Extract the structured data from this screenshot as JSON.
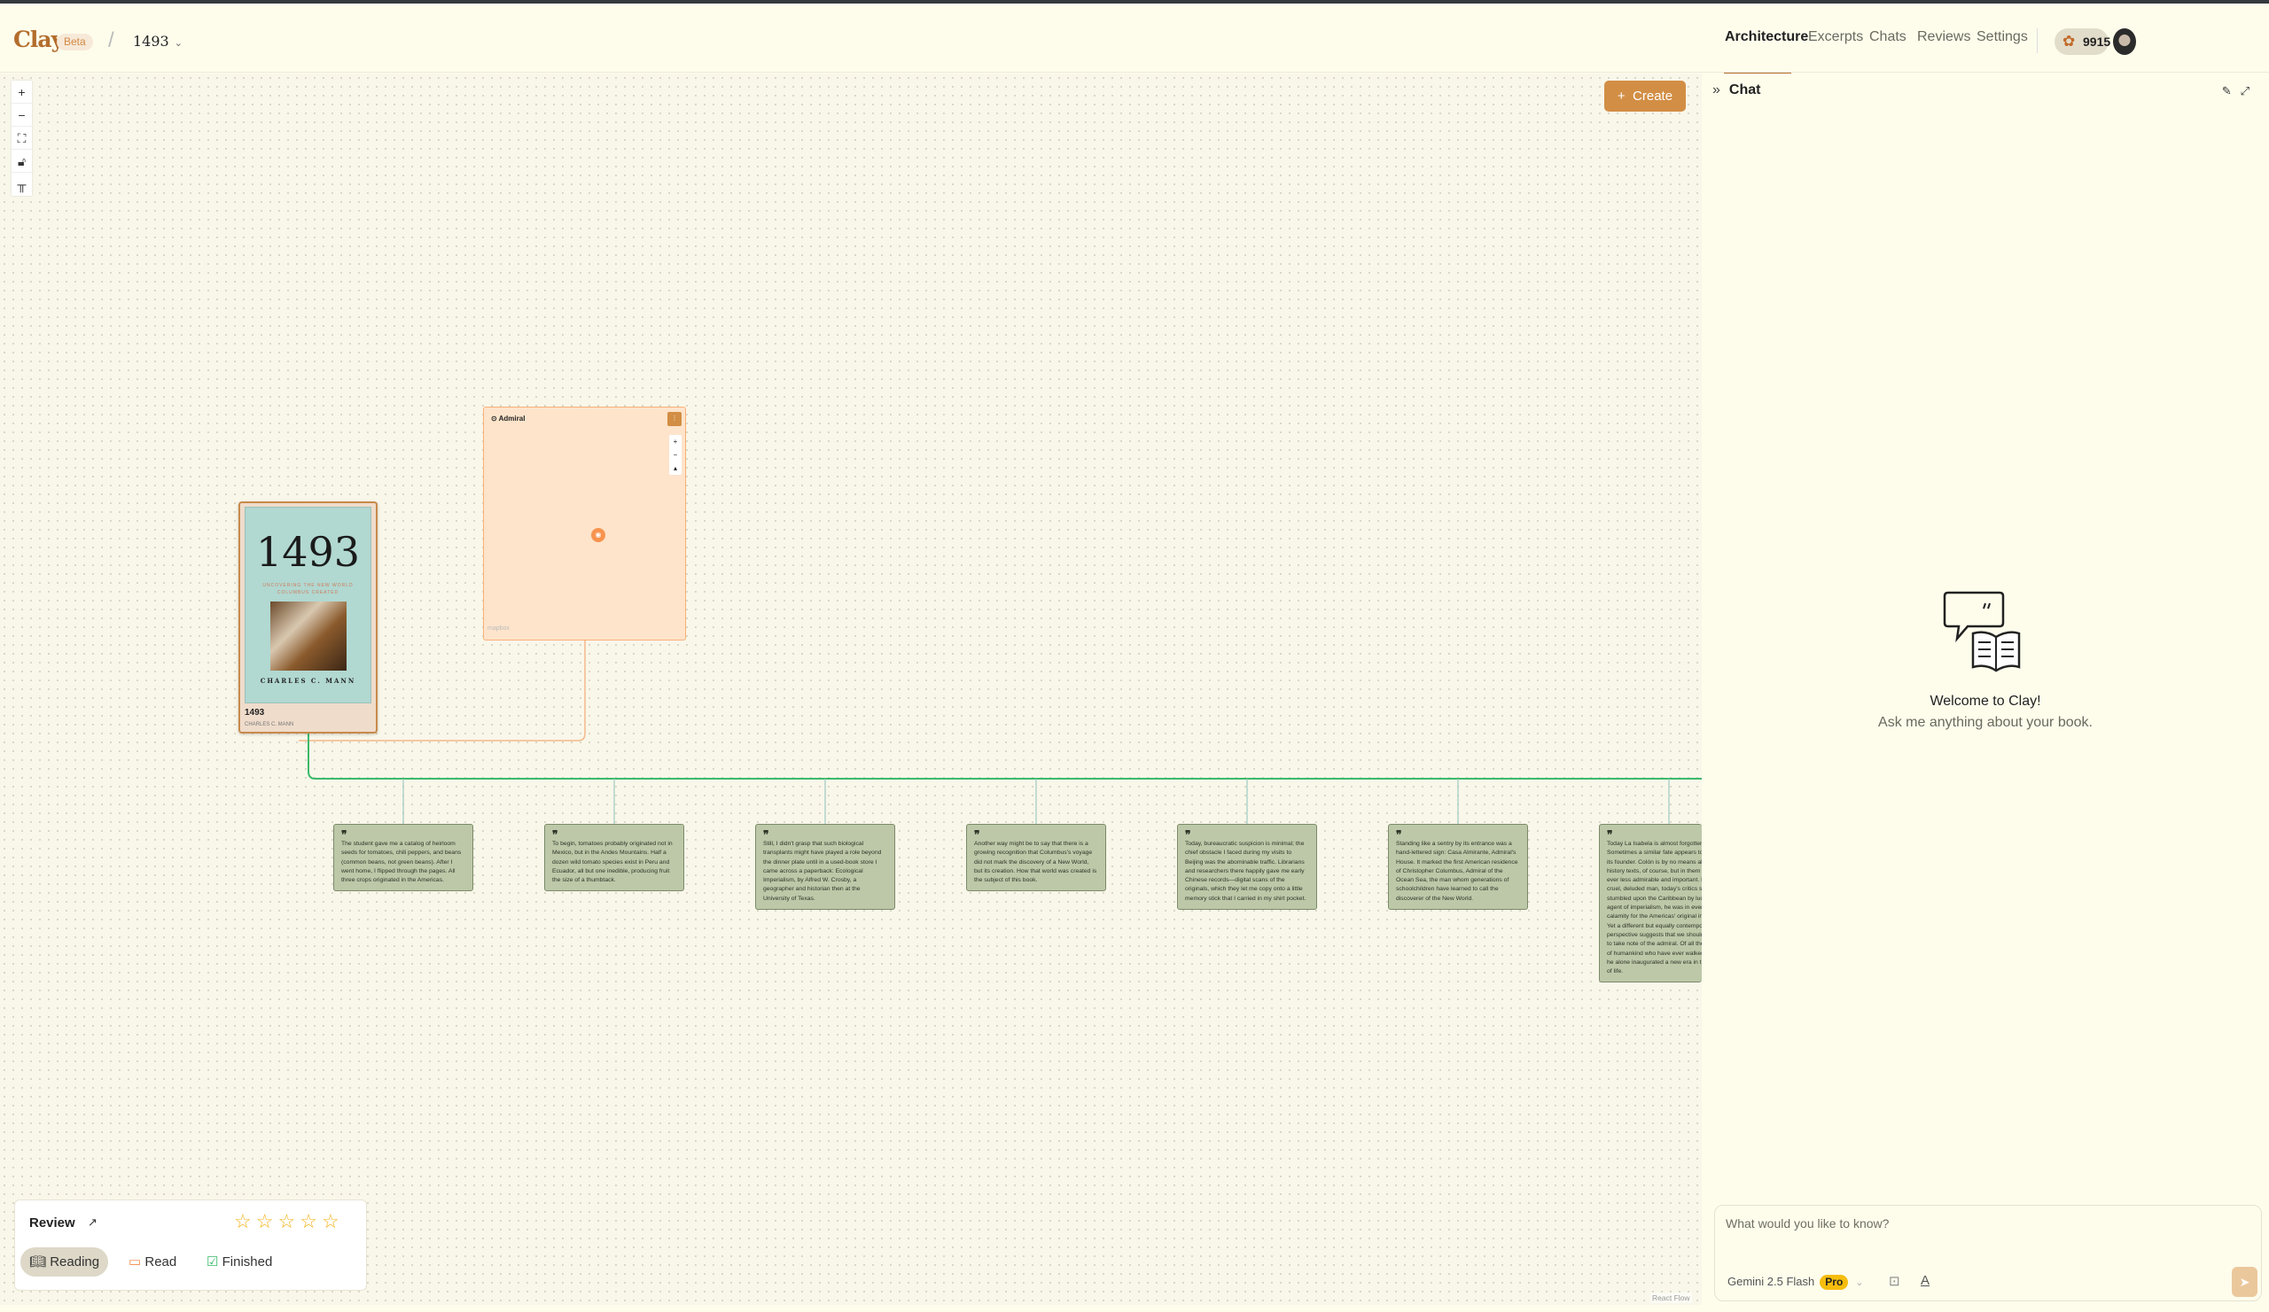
{
  "header": {
    "logo": "Clay",
    "badge": "Beta",
    "separator": "/",
    "book_selector": "1493",
    "nav": [
      "Architecture",
      "Excerpts",
      "Chats",
      "Reviews",
      "Settings"
    ],
    "active_nav": "Architecture",
    "credits": "9915",
    "accent_color": "#b36d2c"
  },
  "canvas": {
    "controls": [
      "zoom-in",
      "zoom-out",
      "fit-view",
      "lock",
      "layout"
    ],
    "create_label": "Create",
    "book_node": {
      "cover_title": "1493",
      "cover_subtitle": "UNCOVERING THE NEW WORLD COLUMBUS CREATED",
      "cover_author": "CHARLES C. MANN",
      "title": "1493",
      "author": "CHARLES C. MANN"
    },
    "map_node": {
      "title": "Admiral",
      "attribution": "mapbox"
    },
    "excerpts": [
      "The student gave me a catalog of heirloom seeds for tomatoes, chili peppers, and beans (common beans, not green beans). After I went home, I flipped through the pages. All three crops originated in the Americas.",
      "To begin, tomatoes probably originated not in Mexico, but in the Andes Mountains. Half a dozen wild tomato species exist in Peru and Ecuador, all but one inedible, producing fruit the size of a thumbtack.",
      "Still, I didn't grasp that such biological transplants might have played a role beyond the dinner plate until in a used-book store I came across a paperback: Ecological Imperialism, by Alfred W. Crosby, a geographer and historian then at the University of Texas.",
      "Another way might be to say that there is a growing recognition that Columbus's voyage did not mark the discovery of a New World, but its creation. How that world was created is the subject of this book.",
      "Today, bureaucratic suspicion is minimal; the chief obstacle I faced during my visits to Beijing was the abominable traffic. Librarians and researchers there happily gave me early Chinese records—digital scans of the originals, which they let me copy onto a little memory stick that I carried in my shirt pocket.",
      "Standing like a sentry by its entrance was a hand-lettered sign: Casa Almirante, Admiral's House. It marked the first American residence of Christopher Columbus, Admiral of the Ocean Sea, the man whom generations of schoolchildren have learned to call the discoverer of the New World.",
      "Today La Isabela is almost forgotten. Sometimes a similar fate appears to threaten its founder. Colón is by no means absent from history texts, of course, but in them he seems ever less admirable and important. He was a cruel, deluded man, today's critics say, who stumbled upon the Caribbean by luck. An agent of imperialism, he was in every way a calamity for the Americas' original inhabitants. Yet a different but equally contemporary perspective suggests that we should continue to take note of the admiral. Of all the members of humankind who have ever walked the earth, he alone inaugurated a new era in the history of life."
    ],
    "excerpt_color": "#bcc8a8",
    "attribution": "React Flow"
  },
  "review": {
    "title": "Review",
    "rating": 0,
    "max_rating": 5,
    "statuses": [
      "Reading",
      "Read",
      "Finished"
    ],
    "selected_status": "Reading"
  },
  "chat": {
    "title": "Chat",
    "welcome": "Welcome to Clay!",
    "subtitle": "Ask me anything about your book.",
    "input_placeholder": "What would you like to know?",
    "model": "Gemini 2.5 Flash",
    "model_badge": "Pro"
  }
}
